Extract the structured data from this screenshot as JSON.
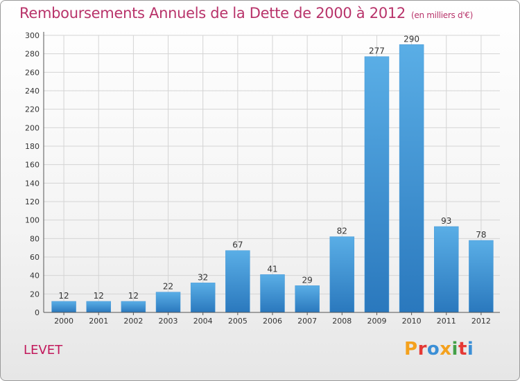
{
  "header": {
    "title": "Remboursements Annuels de la Dette de 2000 à 2012",
    "unit": "(en milliers d'€)"
  },
  "footer": {
    "city": "LEVET",
    "logo_text": "Proxiti",
    "logo_colors": [
      "#f4a11d",
      "#e53935",
      "#3b8fd6",
      "#f4a11d",
      "#43a047",
      "#e53935",
      "#3b8fd6"
    ]
  },
  "colors": {
    "title": "#b8336a",
    "bar_light": "#5aaee6",
    "bar_dark": "#2a78bd",
    "grid": "#d4d4d4"
  },
  "chart_data": {
    "type": "bar",
    "title": "Remboursements Annuels de la Dette de 2000 à 2012",
    "subtitle": "(en milliers d'€)",
    "categories": [
      "2000",
      "2001",
      "2002",
      "2003",
      "2004",
      "2005",
      "2006",
      "2007",
      "2008",
      "2009",
      "2010",
      "2011",
      "2012"
    ],
    "values": [
      12,
      12,
      12,
      22,
      32,
      67,
      41,
      29,
      82,
      277,
      290,
      93,
      78
    ],
    "ylim": [
      0,
      300
    ],
    "yticks": [
      0,
      20,
      40,
      60,
      80,
      100,
      120,
      140,
      160,
      180,
      200,
      220,
      240,
      260,
      280,
      300
    ],
    "grid": true,
    "legend": "none"
  }
}
